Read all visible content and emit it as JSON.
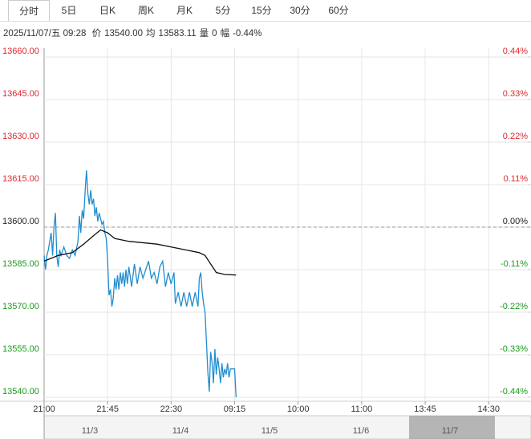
{
  "tabs": [
    "分时",
    "5日",
    "日K",
    "周K",
    "月K",
    "5分",
    "15分",
    "30分",
    "60分"
  ],
  "info": {
    "datetime": "2025/11/07/五 09:28",
    "items": [
      {
        "label": "价",
        "value": "13540.00"
      },
      {
        "label": "均",
        "value": "13583.11"
      },
      {
        "label": "量",
        "value": "0"
      },
      {
        "label": "幅",
        "value": "-0.44%"
      }
    ]
  },
  "chart_data": {
    "type": "line",
    "xlim": [
      0,
      345
    ],
    "xticks": [
      {
        "value": 0,
        "label": "21:00"
      },
      {
        "value": 45,
        "label": "21:45"
      },
      {
        "value": 90,
        "label": "22:30"
      },
      {
        "value": 135,
        "label": "09:15"
      },
      {
        "value": 180,
        "label": "10:00"
      },
      {
        "value": 225,
        "label": "11:00"
      },
      {
        "value": 270,
        "label": "13:45"
      },
      {
        "value": 315,
        "label": "14:30"
      }
    ],
    "ylim": [
      13540,
      13660
    ],
    "yticks": [
      {
        "value": 13660,
        "label": "13660.00"
      },
      {
        "value": 13645,
        "label": "13645.00"
      },
      {
        "value": 13630,
        "label": "13630.00"
      },
      {
        "value": 13615,
        "label": "13615.00"
      },
      {
        "value": 13600,
        "label": "13600.00"
      },
      {
        "value": 13585,
        "label": "13585.00"
      },
      {
        "value": 13570,
        "label": "13570.00"
      },
      {
        "value": 13555,
        "label": "13555.00"
      },
      {
        "value": 13540,
        "label": "13540.00"
      }
    ],
    "y2lim": [
      -0.44,
      0.44
    ],
    "y2ticks": [
      {
        "value": 0.44,
        "label": "0.44%"
      },
      {
        "value": 0.33,
        "label": "0.33%"
      },
      {
        "value": 0.22,
        "label": "0.22%"
      },
      {
        "value": 0.11,
        "label": "0.11%"
      },
      {
        "value": 0,
        "label": "0.00%"
      },
      {
        "value": -0.11,
        "label": "-0.11%"
      },
      {
        "value": -0.22,
        "label": "-0.22%"
      },
      {
        "value": -0.33,
        "label": "-0.33%"
      },
      {
        "value": -0.44,
        "label": "-0.44%"
      }
    ],
    "ref_line": 13600,
    "up_color": "#e0282e",
    "down_color": "#1a9c1a",
    "grid": true,
    "series": [
      {
        "color": "#1f8dd0",
        "x": [
          0,
          1,
          2,
          3,
          4,
          5,
          6,
          7,
          8,
          9,
          10,
          11,
          12,
          14,
          16,
          18,
          20,
          22,
          24,
          25,
          26,
          27,
          28,
          29,
          30,
          31,
          32,
          33,
          34,
          35,
          36,
          37,
          38,
          39,
          40,
          41,
          42,
          43,
          44,
          45,
          46,
          47,
          48,
          49,
          50,
          51,
          52,
          53,
          54,
          55,
          56,
          57,
          58,
          59,
          60,
          62,
          64,
          66,
          68,
          70,
          72,
          74,
          76,
          78,
          80,
          82,
          84,
          86,
          88,
          90,
          92,
          93,
          95,
          97,
          99,
          101,
          103,
          105,
          107,
          109,
          110,
          111,
          112,
          113,
          114,
          115,
          116,
          117,
          118,
          119,
          120,
          121,
          122,
          123,
          124,
          125,
          126,
          127,
          128,
          129,
          130,
          131,
          132,
          133,
          134,
          135,
          136
        ],
        "values": [
          13590,
          13585,
          13590,
          13592,
          13595,
          13598,
          13590,
          13600,
          13605,
          13590,
          13586,
          13592,
          13590,
          13593,
          13590,
          13589,
          13592,
          13590,
          13595,
          13604,
          13598,
          13606,
          13603,
          13612,
          13620,
          13612,
          13608,
          13613,
          13608,
          13610,
          13604,
          13607,
          13602,
          13605,
          13603,
          13601,
          13602,
          13598,
          13596,
          13588,
          13576,
          13578,
          13572,
          13575,
          13582,
          13578,
          13583,
          13578,
          13584,
          13580,
          13584,
          13579,
          13585,
          13580,
          13586,
          13579,
          13587,
          13580,
          13586,
          13582,
          13585,
          13588,
          13582,
          13584,
          13580,
          13586,
          13588,
          13579,
          13584,
          13580,
          13584,
          13573,
          13577,
          13572,
          13577,
          13572,
          13577,
          13572,
          13577,
          13572,
          13582,
          13584,
          13577,
          13573,
          13570,
          13560,
          13549,
          13542,
          13556,
          13552,
          13545,
          13557,
          13548,
          13554,
          13550,
          13545,
          13552,
          13547,
          13550,
          13548,
          13552,
          13547,
          13550,
          13550,
          13550,
          13550,
          13540
        ]
      },
      {
        "color": "#111111",
        "x": [
          0,
          10,
          20,
          28,
          35,
          40,
          45,
          50,
          60,
          80,
          100,
          110,
          114,
          118,
          122,
          128,
          136
        ],
        "values": [
          13588,
          13590,
          13591,
          13594,
          13597,
          13599,
          13598,
          13596,
          13595,
          13594,
          13592,
          13591,
          13590,
          13587,
          13584,
          13583.3,
          13583.11
        ]
      }
    ]
  },
  "overview": {
    "dates": [
      "11/3",
      "11/4",
      "11/5",
      "11/6",
      "11/7"
    ]
  }
}
